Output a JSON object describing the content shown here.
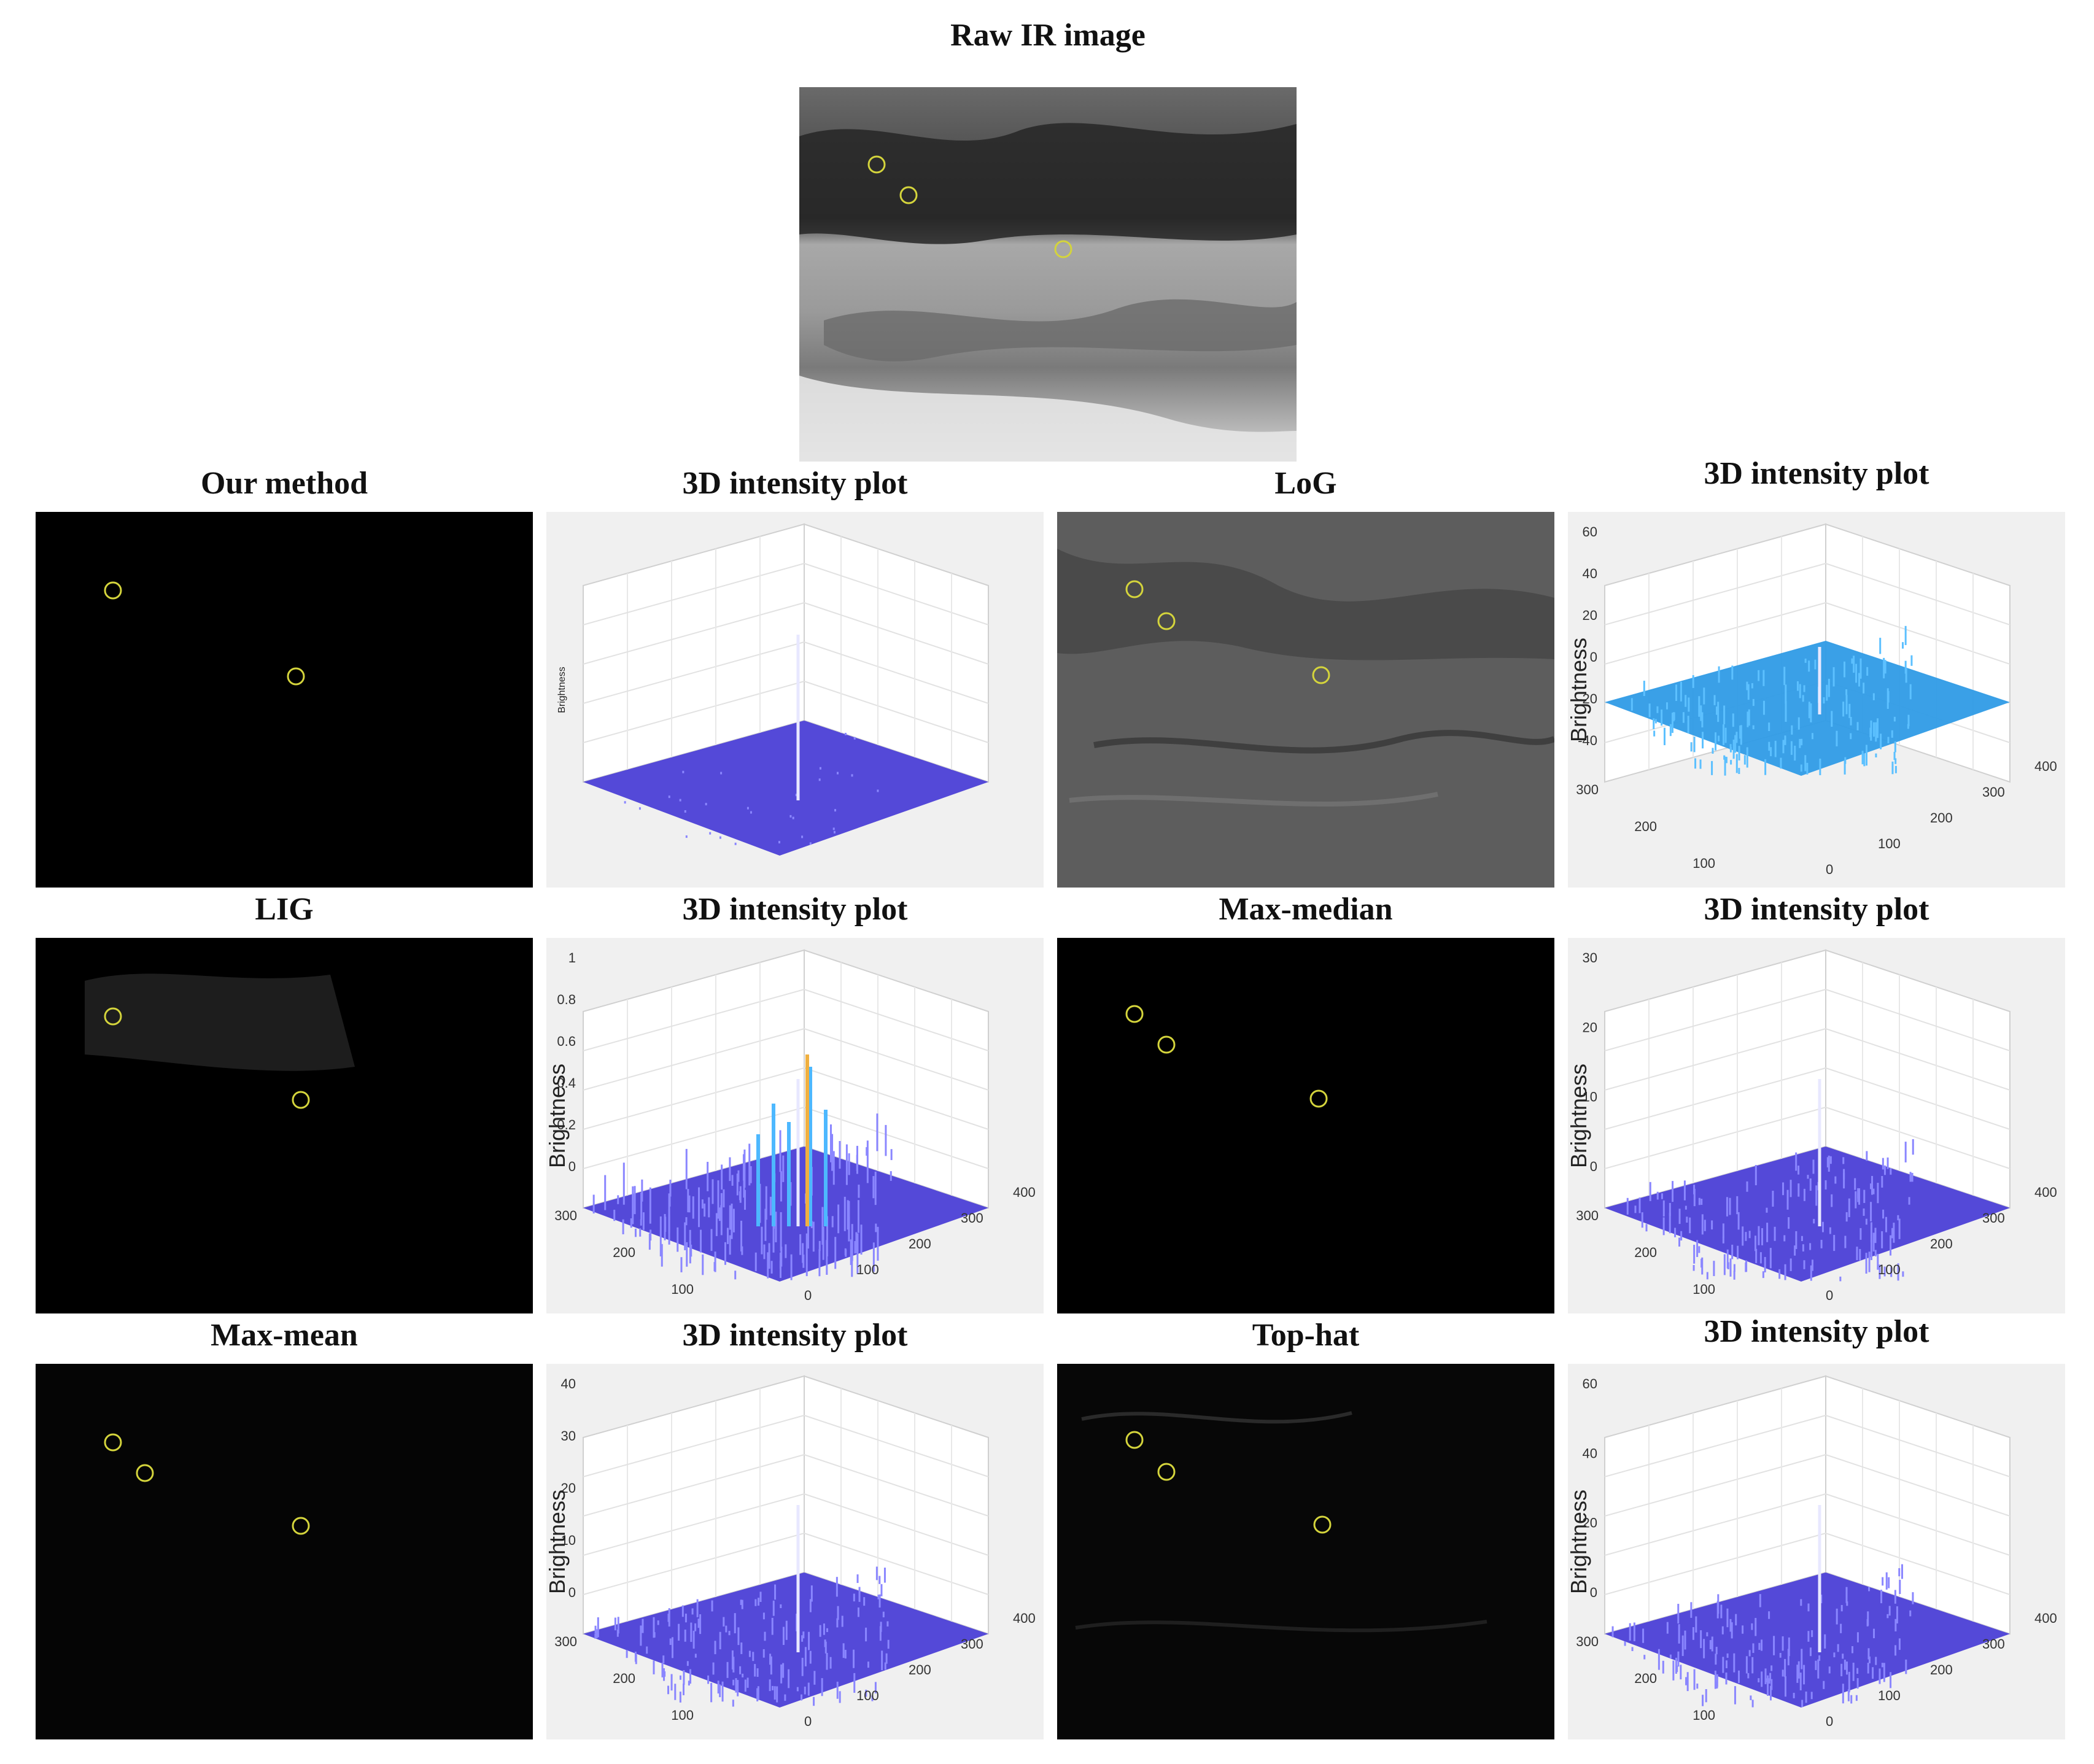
{
  "figure": {
    "raw": {
      "title": "Raw IR image",
      "marker_color": "#d4d43c",
      "marker_count": 3
    },
    "rows": [
      {
        "left": {
          "title": "Our method",
          "tone": "black",
          "marker_count": 2
        },
        "left_plot": {
          "title": "3D intensity plot",
          "ylabel": "Brightness",
          "z_ticks": [],
          "y_ticks": [],
          "x_ticks": [],
          "surface_color": "#4b3fd6"
        },
        "right": {
          "title": "LoG",
          "tone": "gray",
          "marker_count": 3
        },
        "right_plot": {
          "title": "3D intensity plot",
          "ylabel": "Brightness",
          "z_ticks": [
            "60",
            "40",
            "20",
            "0",
            "-20",
            "-40"
          ],
          "y_ticks": [
            "300",
            "200",
            "100",
            "0"
          ],
          "x_ticks": [
            "0",
            "100",
            "200",
            "300",
            "400"
          ],
          "surface_color": "#2f9be6"
        }
      },
      {
        "left": {
          "title": "LIG",
          "tone": "black",
          "marker_count": 2
        },
        "left_plot": {
          "title": "3D intensity plot",
          "ylabel": "Brightness",
          "z_ticks": [
            "1",
            "0.8",
            "0.6",
            "0.4",
            "0.2",
            "0"
          ],
          "y_ticks": [
            "300",
            "200",
            "100",
            "0"
          ],
          "x_ticks": [
            "0",
            "100",
            "200",
            "300",
            "400"
          ],
          "surface_color": "#4b3fd6"
        },
        "right": {
          "title": "Max-median",
          "tone": "black",
          "marker_count": 3
        },
        "right_plot": {
          "title": "3D intensity plot",
          "ylabel": "Brightness",
          "z_ticks": [
            "30",
            "20",
            "10",
            "0"
          ],
          "y_ticks": [
            "300",
            "200",
            "100",
            "0"
          ],
          "x_ticks": [
            "0",
            "100",
            "200",
            "300",
            "400"
          ],
          "surface_color": "#4b3fd6"
        }
      },
      {
        "left": {
          "title": "Max-mean",
          "tone": "black",
          "marker_count": 3
        },
        "left_plot": {
          "title": "3D intensity plot",
          "ylabel": "Brightness",
          "z_ticks": [
            "40",
            "30",
            "20",
            "10",
            "0"
          ],
          "y_ticks": [
            "300",
            "200",
            "100",
            "0"
          ],
          "x_ticks": [
            "0",
            "100",
            "200",
            "300",
            "400"
          ],
          "surface_color": "#4b3fd6"
        },
        "right": {
          "title": "Top-hat",
          "tone": "black",
          "marker_count": 3
        },
        "right_plot": {
          "title": "3D intensity plot",
          "ylabel": "Brightness",
          "z_ticks": [
            "60",
            "40",
            "20",
            "0"
          ],
          "y_ticks": [
            "300",
            "200",
            "100",
            "0"
          ],
          "x_ticks": [
            "0",
            "100",
            "200",
            "300",
            "400"
          ],
          "surface_color": "#4b3fd6"
        }
      }
    ]
  }
}
